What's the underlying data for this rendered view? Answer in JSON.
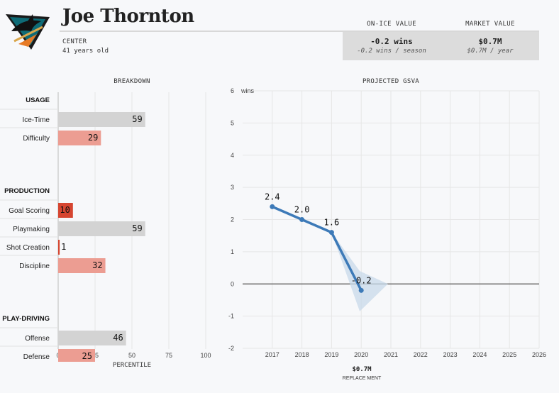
{
  "player": {
    "name": "Joe Thornton",
    "position": "CENTER",
    "age": "41 years old"
  },
  "values": {
    "on_ice": {
      "heading": "ON-ICE VALUE",
      "main": "-0.2 wins",
      "sub": "-0.2 wins / season"
    },
    "market": {
      "heading": "MARKET VALUE",
      "main": "$0.7M",
      "sub": "$0.7M / year"
    }
  },
  "colors": {
    "gray_bar": "#d3d3d3",
    "light_red": "#ec9d92",
    "dark_red": "#d64530",
    "line_blue": "#3d7ab8",
    "band_blue": "#c8d9ea",
    "value_box": "#dcdcdc"
  },
  "chart_data": [
    {
      "type": "bar",
      "orientation": "horizontal",
      "title": "BREAKDOWN",
      "xlabel": "PERCENTILE",
      "xlim": [
        0,
        100
      ],
      "xticks": [
        0,
        25,
        50,
        75,
        100
      ],
      "groups": [
        {
          "name": "USAGE",
          "items": [
            {
              "label": "Ice-Time",
              "value": 59,
              "color": "gray"
            },
            {
              "label": "Difficulty",
              "value": 29,
              "color": "light-red"
            }
          ]
        },
        {
          "name": "PRODUCTION",
          "items": [
            {
              "label": "Goal Scoring",
              "value": 10,
              "color": "dark-red"
            },
            {
              "label": "Playmaking",
              "value": 59,
              "color": "gray"
            },
            {
              "label": "Shot Creation",
              "value": 1,
              "color": "dark-red"
            },
            {
              "label": "Discipline",
              "value": 32,
              "color": "light-red"
            }
          ]
        },
        {
          "name": "PLAY-DRIVING",
          "items": [
            {
              "label": "Offense",
              "value": 46,
              "color": "gray"
            },
            {
              "label": "Defense",
              "value": 25,
              "color": "light-red"
            }
          ]
        }
      ]
    },
    {
      "type": "line",
      "title": "PROJECTED GSVA",
      "ylabel": "wins",
      "ylim": [
        -2,
        6
      ],
      "yticks": [
        -2,
        -1,
        0,
        1,
        2,
        3,
        4,
        5,
        6
      ],
      "xlim": [
        2016,
        2026
      ],
      "xticks": [
        2017,
        2018,
        2019,
        2020,
        2021,
        2022,
        2023,
        2024,
        2025,
        2026
      ],
      "x": [
        2017,
        2018,
        2019,
        2020
      ],
      "y": [
        2.4,
        2.0,
        1.6,
        -0.2
      ],
      "point_labels": [
        "2.4",
        "2.0",
        "1.6",
        "-0.2"
      ],
      "uncertainty": {
        "x": [
          2019,
          2019.95,
          2020.9,
          2019.95
        ],
        "y": [
          1.6,
          -0.85,
          0.0,
          0.4
        ]
      },
      "grid": true,
      "footer_value": "$0.7M",
      "footer_sub": "REPLACE MENT"
    }
  ]
}
